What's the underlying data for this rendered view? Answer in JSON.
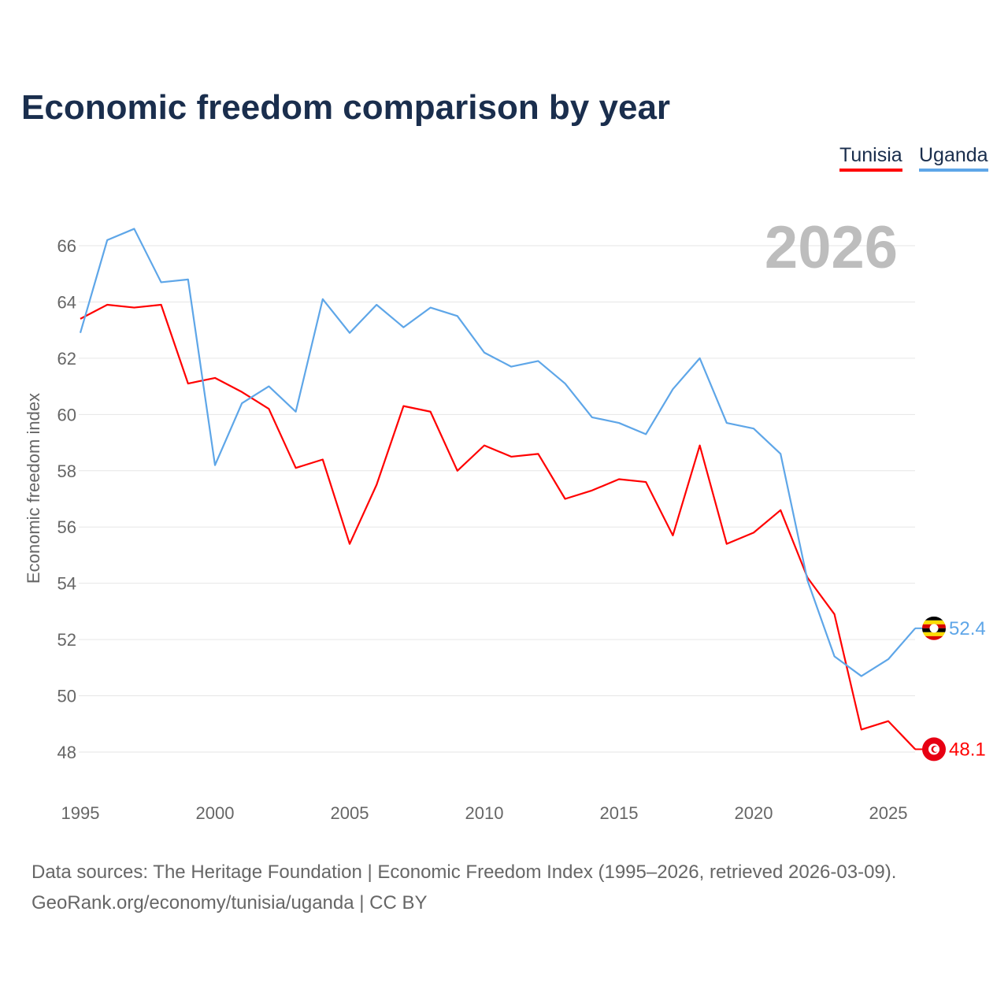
{
  "chart_data": {
    "type": "line",
    "title": "Economic freedom comparison by year",
    "ylabel": "Economic freedom index",
    "xlabel": "",
    "year_watermark": "2026",
    "x": [
      1995,
      1996,
      1997,
      1998,
      1999,
      2000,
      2001,
      2002,
      2003,
      2004,
      2005,
      2006,
      2007,
      2008,
      2009,
      2010,
      2011,
      2012,
      2013,
      2014,
      2015,
      2016,
      2017,
      2018,
      2019,
      2020,
      2021,
      2022,
      2023,
      2024,
      2025,
      2026
    ],
    "xticks": [
      1995,
      2000,
      2005,
      2010,
      2015,
      2020,
      2025
    ],
    "xtick_labels": [
      "1995",
      "2000",
      "2005",
      "2010",
      "2015",
      "2020",
      "2025"
    ],
    "yticks": [
      48,
      50,
      52,
      54,
      56,
      58,
      60,
      62,
      64,
      66
    ],
    "ytick_labels": [
      "48",
      "50",
      "52",
      "54",
      "56",
      "58",
      "60",
      "62",
      "64",
      "66"
    ],
    "xlim": [
      1995,
      2026
    ],
    "ylim": [
      46.5,
      67.5
    ],
    "grid": true,
    "legend_position": "top-right",
    "series": [
      {
        "name": "Tunisia",
        "color": "#ff0000",
        "end_label": "48.1",
        "values": [
          63.4,
          63.9,
          63.8,
          63.9,
          61.1,
          61.3,
          60.8,
          60.2,
          58.1,
          58.4,
          55.4,
          57.5,
          60.3,
          60.1,
          58.0,
          58.9,
          58.5,
          58.6,
          57.0,
          57.3,
          57.7,
          57.6,
          55.7,
          58.9,
          55.4,
          55.8,
          56.6,
          54.2,
          52.9,
          48.8,
          49.1,
          48.1
        ]
      },
      {
        "name": "Uganda",
        "color": "#5ea6e8",
        "end_label": "52.4",
        "values": [
          62.9,
          66.2,
          66.6,
          64.7,
          64.8,
          58.2,
          60.4,
          61.0,
          60.1,
          64.1,
          62.9,
          63.9,
          63.1,
          63.8,
          63.5,
          62.2,
          61.7,
          61.9,
          61.1,
          59.9,
          59.7,
          59.3,
          60.9,
          62.0,
          59.7,
          59.5,
          58.6,
          54.1,
          51.4,
          50.7,
          51.3,
          52.4
        ]
      }
    ]
  },
  "footer": {
    "line1": "Data sources: The Heritage Foundation | Economic Freedom Index (1995–2026, retrieved 2026-03-09).",
    "line2": "GeoRank.org/economy/tunisia/uganda | CC BY"
  }
}
